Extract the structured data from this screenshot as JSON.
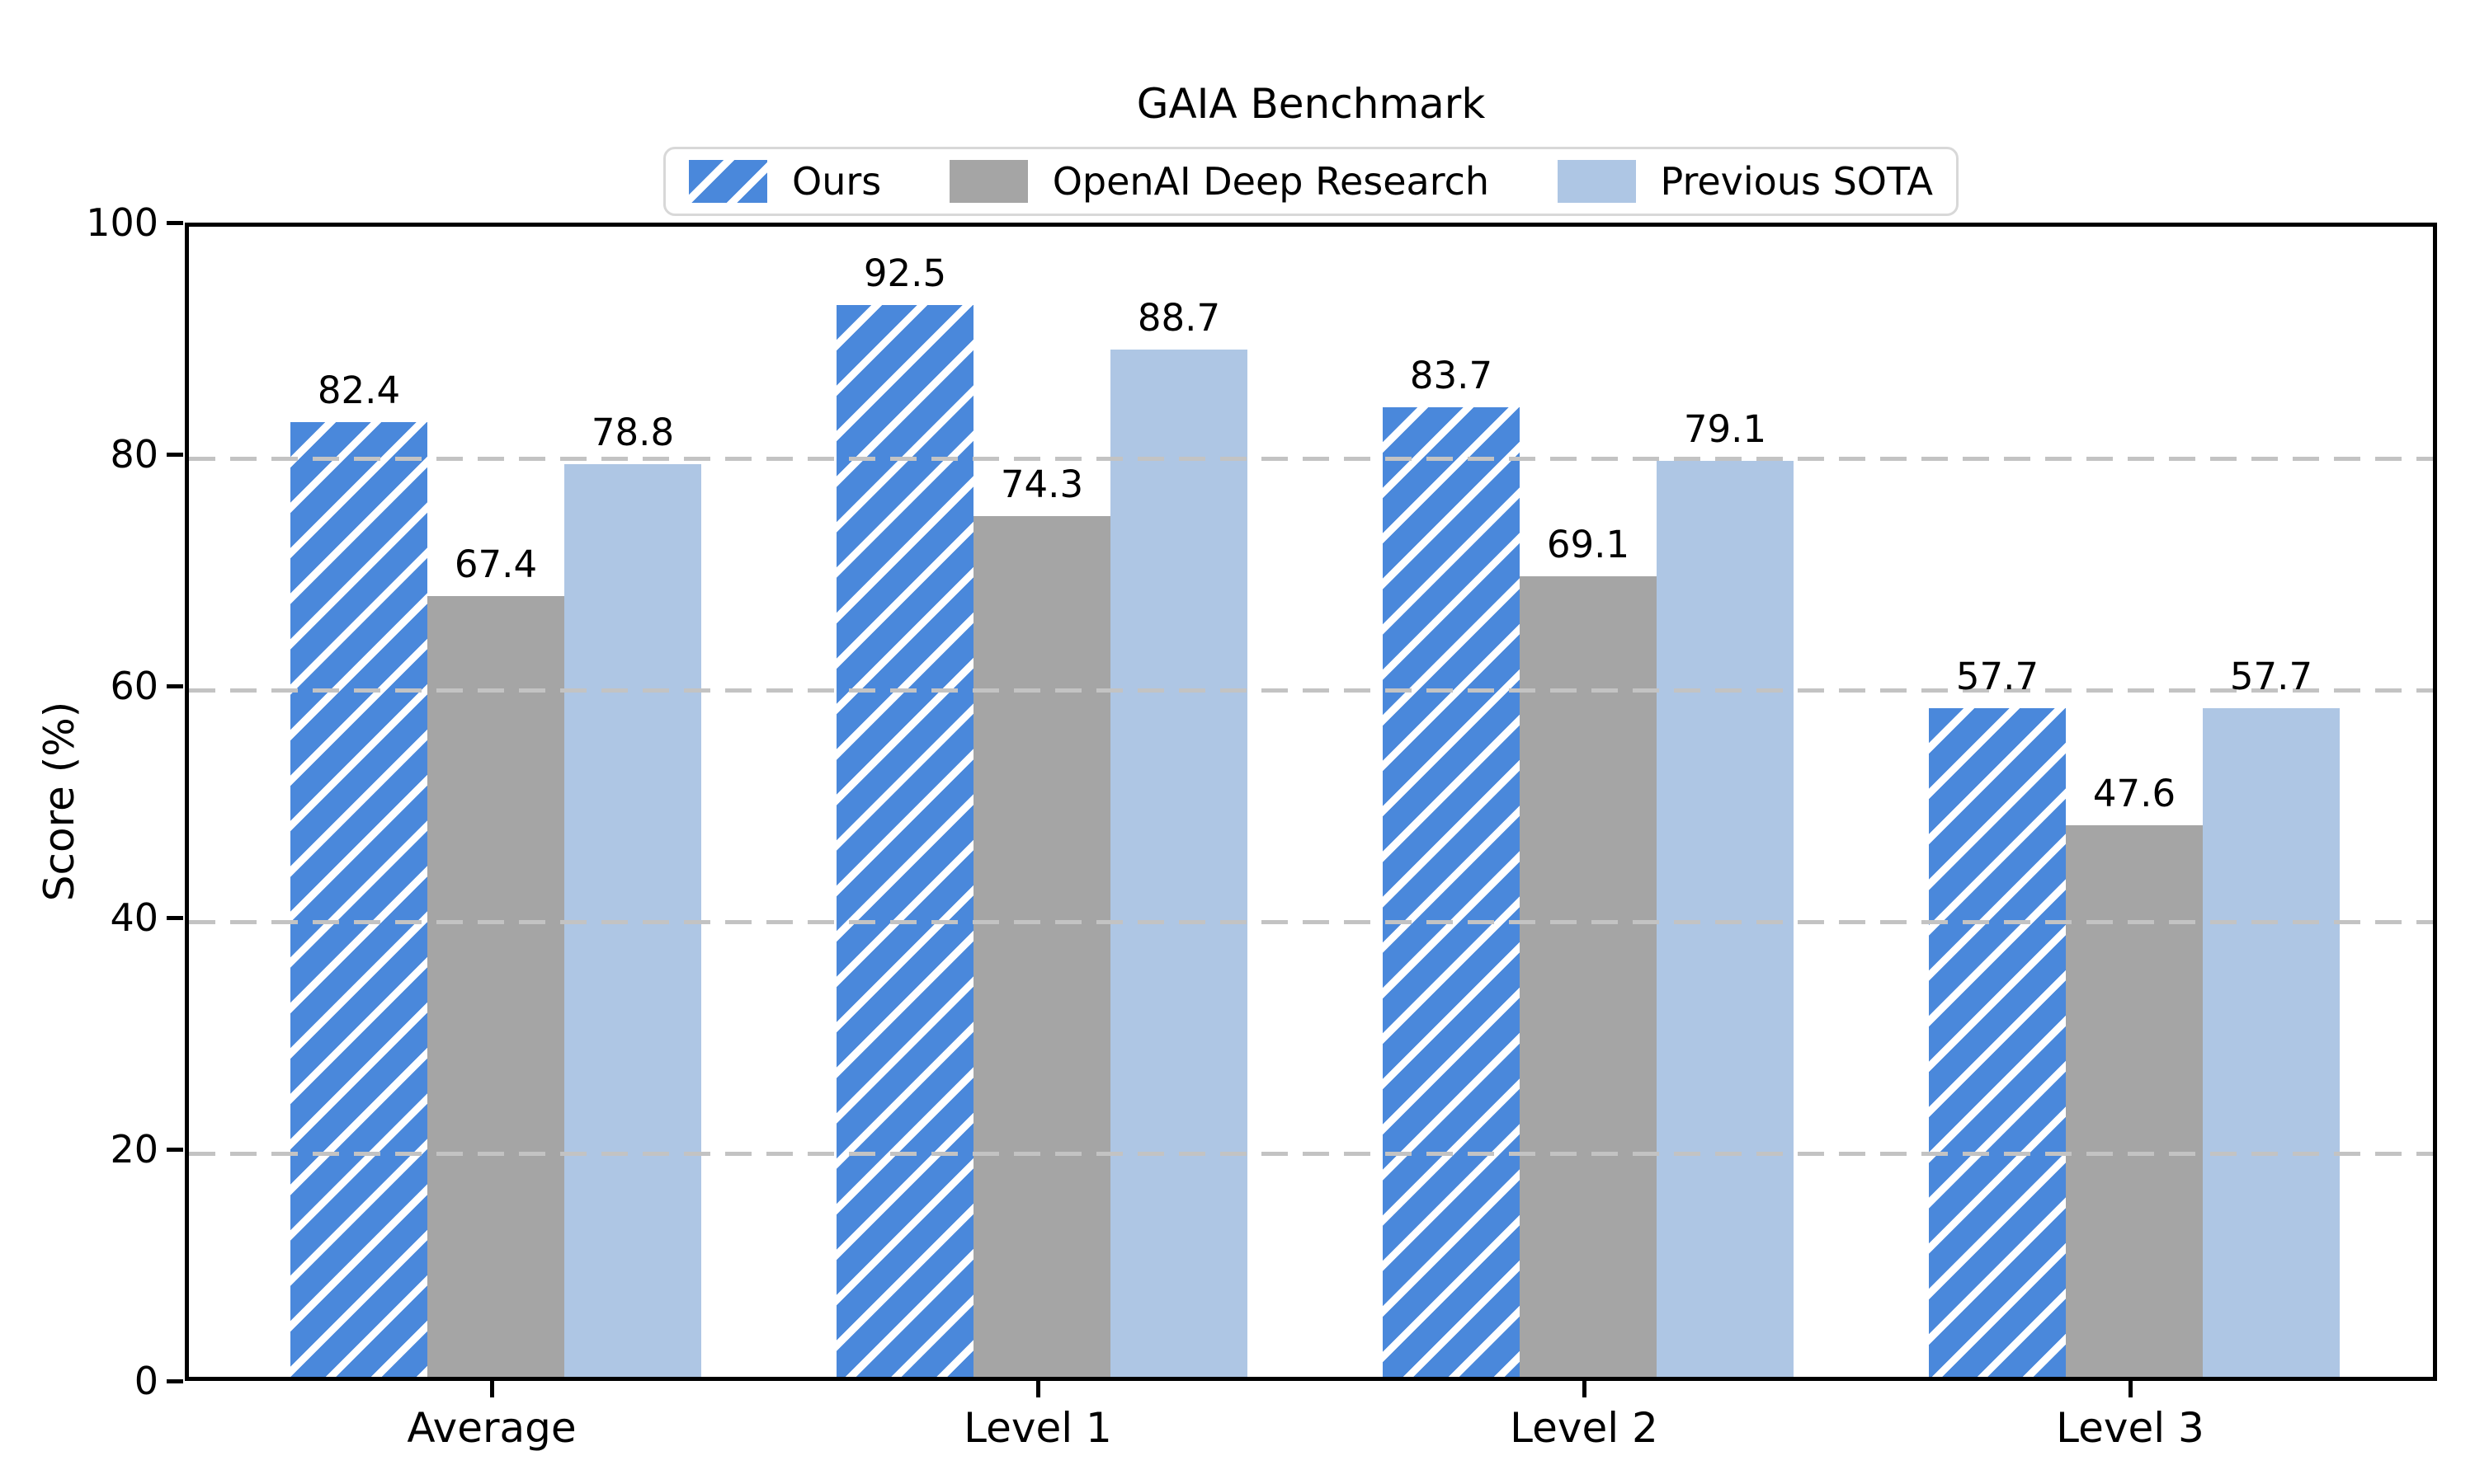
{
  "chart_data": {
    "type": "bar",
    "title": "GAIA Benchmark",
    "ylabel": "Score (%)",
    "xlabel": "",
    "ylim": [
      0,
      100
    ],
    "yticks": [
      0,
      20,
      40,
      60,
      80,
      100
    ],
    "grid_values": [
      20,
      40,
      60,
      80
    ],
    "grid_style": "dashed horizontal, drawn over bars",
    "legend_position": "upper center",
    "categories": [
      "Average",
      "Level 1",
      "Level 2",
      "Level 3"
    ],
    "series": [
      {
        "name": "Ours",
        "color": "#4a88db",
        "hatch": "white-diagonal-stripes",
        "values": [
          82.4,
          92.5,
          83.7,
          57.7
        ]
      },
      {
        "name": "OpenAI Deep Research",
        "color": "#a5a5a5",
        "hatch": "none",
        "values": [
          67.4,
          74.3,
          69.1,
          47.6
        ]
      },
      {
        "name": "Previous SOTA",
        "color": "#aec6e4",
        "hatch": "none",
        "values": [
          78.8,
          88.7,
          79.1,
          57.7
        ]
      }
    ]
  }
}
